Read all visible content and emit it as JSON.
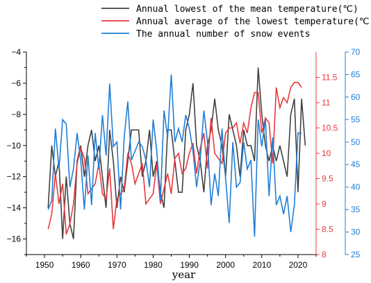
{
  "chart_data": {
    "type": "line",
    "xlabel": "year",
    "x_axis": {
      "range": [
        1945,
        2025
      ],
      "ticks": [
        1950,
        1960,
        1970,
        1980,
        1990,
        2000,
        2010,
        2020
      ]
    },
    "left_axis": {
      "range": [
        -17,
        -4
      ],
      "ticks": [
        -16,
        -14,
        -12,
        -10,
        -8,
        -6,
        -4
      ]
    },
    "right_axis_1": {
      "range": [
        8,
        12
      ],
      "ticks": [
        8,
        8.5,
        9,
        9.5,
        10,
        10.5,
        11,
        11.5
      ],
      "color": "#e8383d"
    },
    "right_axis_2": {
      "range": [
        25,
        70
      ],
      "ticks": [
        25,
        30,
        35,
        40,
        45,
        50,
        55,
        60,
        65,
        70
      ],
      "color": "#1f7ed6"
    },
    "legend_position": "top-right",
    "series": [
      {
        "name": "Annual lowest of the mean temperature(℃)",
        "color": "#404040",
        "axis": "left",
        "values": [
          -14,
          -10,
          -12,
          -11,
          -16,
          -12,
          -15,
          -16,
          -11,
          -10,
          -12,
          -10,
          -9,
          -11,
          -10,
          -12,
          -14,
          -9,
          -11,
          -14,
          -12,
          -13,
          -11,
          -9,
          -9,
          -9,
          -12,
          -11,
          -9,
          -12,
          -11,
          -13,
          -14,
          -9,
          -9,
          -11,
          -13,
          -13,
          -9,
          -8,
          -6,
          -10,
          -11,
          -13,
          -10,
          -9,
          -7,
          -9,
          -10,
          -12,
          -8,
          -9,
          -10,
          -12,
          -9,
          -10,
          -10,
          -11,
          -5,
          -8,
          -10,
          -11,
          -10,
          -11,
          -10,
          -11,
          -12,
          -8,
          -7,
          -13,
          -7,
          -10
        ]
      },
      {
        "name": "Annual average of the lowest temperature(℃)",
        "color": "#e8383d",
        "axis": "right_1",
        "values": [
          8.5,
          8.8,
          9.6,
          9.0,
          9.4,
          8.4,
          8.6,
          9.0,
          9.8,
          10.1,
          9.9,
          9.2,
          9.3,
          9.4,
          9.8,
          9.2,
          9.1,
          9.7,
          8.5,
          9.1,
          9.2,
          9.3,
          10.0,
          9.8,
          9.4,
          9.6,
          9.8,
          9.0,
          9.1,
          9.2,
          9.8,
          9.0,
          9.3,
          9.6,
          9.2,
          9.9,
          10.0,
          9.6,
          9.7,
          10.0,
          10.2,
          9.6,
          10.1,
          10.4,
          9.7,
          10.7,
          10.0,
          9.9,
          9.8,
          10.4,
          10.5,
          10.5,
          10.6,
          10.2,
          10.6,
          10.4,
          10.9,
          11.2,
          11.2,
          10.4,
          10.7,
          10.6,
          9.8,
          11.3,
          10.9,
          11.1,
          11.0,
          11.3,
          11.4,
          11.4,
          11.3
        ]
      },
      {
        "name": "The annual number of snow events",
        "color": "#1f7ed6",
        "axis": "right_2",
        "values": [
          35,
          37,
          53,
          44,
          55,
          54,
          40,
          44,
          52,
          46,
          35,
          47,
          36,
          52,
          44,
          56,
          47,
          63,
          49,
          50,
          35,
          51,
          59,
          46,
          48,
          50,
          49,
          46,
          40,
          55,
          48,
          37,
          57,
          51,
          65,
          50,
          53,
          50,
          56,
          53,
          48,
          40,
          46,
          57,
          50,
          36,
          43,
          38,
          53,
          42,
          32,
          50,
          40,
          41,
          50,
          44,
          46,
          29,
          55,
          49,
          55,
          38,
          51,
          36,
          38,
          34,
          38,
          30,
          36,
          52,
          52
        ]
      }
    ]
  }
}
